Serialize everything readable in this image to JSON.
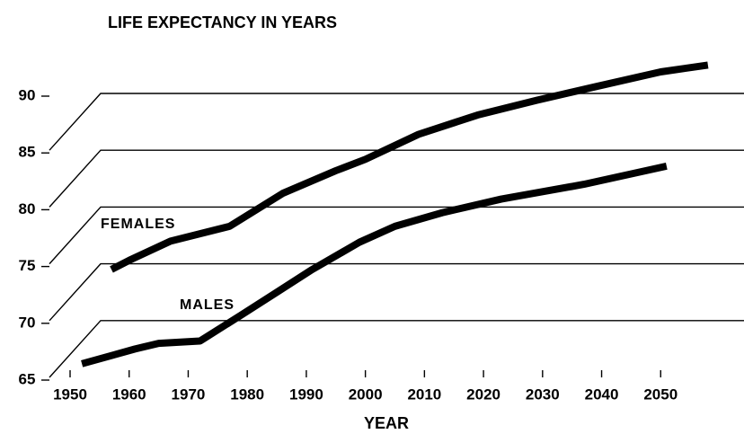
{
  "chart_data": {
    "type": "line",
    "title": "LIFE EXPECTANCY IN YEARS",
    "x_label": "YEAR",
    "series": [
      {
        "name": "FEMALES",
        "color": "#000000",
        "x": [
          1957,
          1960,
          1967,
          1977,
          1986,
          1995,
          2000,
          2009,
          2019,
          2029,
          2039,
          2050,
          2058
        ],
        "values": [
          74.5,
          75.3,
          77.0,
          78.3,
          81.2,
          83.2,
          84.2,
          86.4,
          88.1,
          89.4,
          90.6,
          91.9,
          92.5
        ]
      },
      {
        "name": "MALES",
        "color": "#000000",
        "x": [
          1952,
          1961,
          1965,
          1972,
          1979,
          1985,
          1991,
          1999,
          2005,
          2013,
          2023,
          2037,
          2051
        ],
        "values": [
          66.2,
          67.5,
          68.0,
          68.2,
          70.5,
          72.5,
          74.5,
          76.9,
          78.3,
          79.5,
          80.7,
          82.0,
          83.6
        ]
      }
    ],
    "xlim": [
      1950,
      2060
    ],
    "xticks": [
      1950,
      1960,
      1970,
      1980,
      1990,
      2000,
      2010,
      2020,
      2030,
      2040,
      2050
    ],
    "ylim": [
      65,
      90
    ],
    "yticks": [
      65,
      70,
      75,
      80,
      85,
      90
    ],
    "grid": true
  }
}
